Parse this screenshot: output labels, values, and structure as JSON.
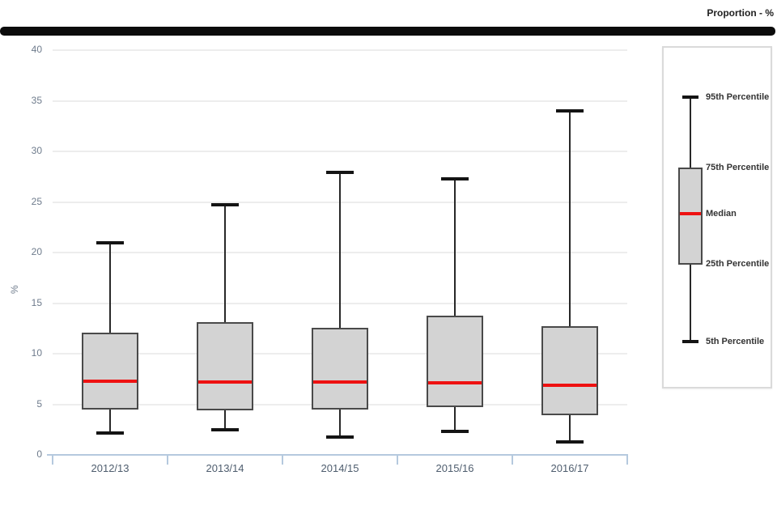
{
  "header": {
    "series_title": "Proportion - %"
  },
  "chart_data": {
    "type": "boxplot",
    "title": "",
    "xlabel": "",
    "ylabel": "%",
    "ylim": [
      0,
      40
    ],
    "y_ticks": [
      0,
      5,
      10,
      15,
      20,
      25,
      30,
      35,
      40
    ],
    "grid": true,
    "categories": [
      "2012/13",
      "2013/14",
      "2014/15",
      "2015/16",
      "2016/17"
    ],
    "series": [
      {
        "category": "2012/13",
        "p5": 2.2,
        "q1": 4.5,
        "median": 7.3,
        "q3": 12.1,
        "p95": 21.0
      },
      {
        "category": "2013/14",
        "p5": 2.5,
        "q1": 4.4,
        "median": 7.2,
        "q3": 13.1,
        "p95": 24.7
      },
      {
        "category": "2014/15",
        "p5": 1.8,
        "q1": 4.5,
        "median": 7.2,
        "q3": 12.6,
        "p95": 27.9
      },
      {
        "category": "2015/16",
        "p5": 2.3,
        "q1": 4.7,
        "median": 7.1,
        "q3": 13.8,
        "p95": 27.3
      },
      {
        "category": "2016/17",
        "p5": 1.3,
        "q1": 3.9,
        "median": 6.9,
        "q3": 12.7,
        "p95": 34.0
      }
    ],
    "legend": {
      "position": "right",
      "items": [
        "95th Percentile",
        "75th Percentile",
        "Median",
        "25th Percentile",
        "5th Percentile"
      ]
    },
    "colors": {
      "box_fill": "#d3d3d3",
      "box_border": "#4a4a4a",
      "median": "#ee1111",
      "whisker": "#282828",
      "gridline": "#ededed",
      "axis_line": "#b5c9de",
      "y_tick_label": "#6e7b8c",
      "category_label": "#4e5d6e",
      "top_bar": "#0c0c0c"
    }
  }
}
